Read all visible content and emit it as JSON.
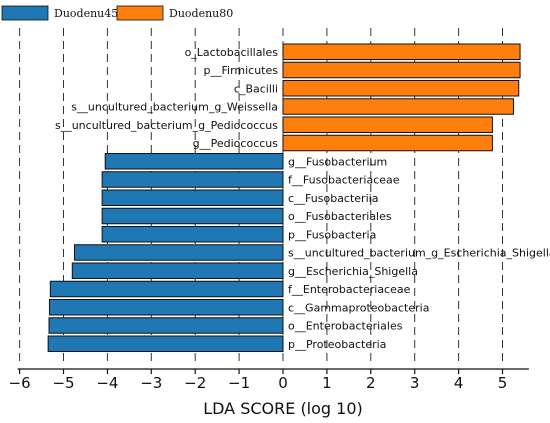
{
  "colors": {
    "group_a": "#1f77b4",
    "group_b": "#ff7f0e",
    "grid": "#333333",
    "bar_edge": "#111111"
  },
  "chart_data": {
    "type": "bar",
    "orientation": "horizontal",
    "title": "",
    "xlabel": "LDA SCORE (log 10)",
    "ylabel": "",
    "xlim": [
      -6,
      5.6
    ],
    "xticks": [
      -6,
      -5,
      -4,
      -3,
      -2,
      -1,
      0,
      1,
      2,
      3,
      4,
      5
    ],
    "xtick_labels": [
      "−6",
      "−5",
      "−4",
      "−3",
      "−2",
      "−1",
      "0",
      "1",
      "2",
      "3",
      "4",
      "5"
    ],
    "grid": "vertical dashed",
    "legend": {
      "position": "top-left",
      "entries": [
        "Duodenu45",
        "Duodenu80"
      ]
    },
    "categories": [
      "o_Lactobacillales",
      "p_Firmicutes",
      "c_Bacilli",
      "s_uncultured_bacterium_g_Weissella",
      "s_uncultured_bacterium_g_Pediococcus",
      "g_Pediococcus",
      "g_Fusobacterium",
      "f_Fusobacteriaceae",
      "c_Fusobacteriia",
      "o_Fusobacteriales",
      "p_Fusobacteria",
      "s_uncultured_bacterium_g_Escherichia_Shigella",
      "g_Escherichia_Shigella",
      "f_Enterobacteriaceae",
      "c_Gammaproteobacteria",
      "o_Enterobacteriales",
      "p_Proteobacteria"
    ],
    "display_labels": [
      "o_Lactobacillales",
      "p__Firmicutes",
      "c_Bacilli",
      "s__uncultured_bacterium_g_Weissella",
      "s__uncultured_bacterium_g_Pediococcus",
      "g__Pediococcus",
      "g__Fusobacterium",
      "f__Fusobacteriaceae",
      "c__Fusobacteriia",
      "o__Fusobacteriales",
      "p__Fusobacteria",
      "s__uncultured_bacterium_g_Escherichia_Shigella",
      "g__Escherichia_Shigella",
      "f__Enterobacteriaceae",
      "c__Gammaproteobacteria",
      "o__Enterobacteriales",
      "p__Proteobacteria"
    ],
    "series": [
      {
        "name": "Duodenu45",
        "color": "#1f77b4",
        "values": [
          null,
          null,
          null,
          null,
          null,
          null,
          -4.05,
          -4.12,
          -4.12,
          -4.12,
          -4.12,
          -4.75,
          -4.8,
          -5.3,
          -5.32,
          -5.33,
          -5.35
        ]
      },
      {
        "name": "Duodenu80",
        "color": "#ff7f0e",
        "values": [
          5.4,
          5.4,
          5.37,
          5.25,
          4.77,
          4.77,
          null,
          null,
          null,
          null,
          null,
          null,
          null,
          null,
          null,
          null,
          null
        ]
      }
    ]
  }
}
